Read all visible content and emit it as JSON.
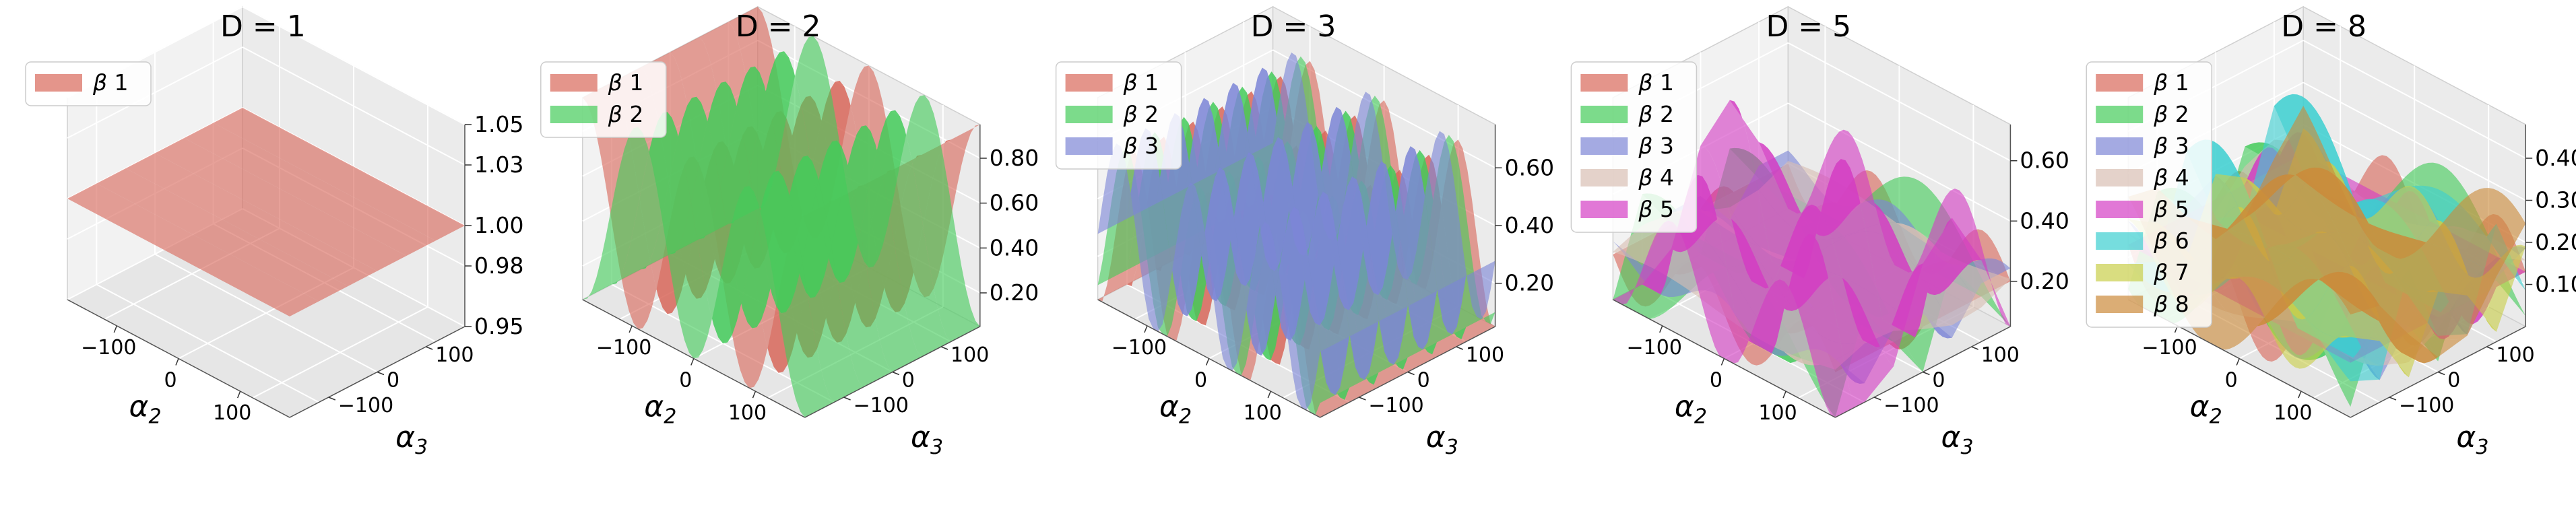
{
  "figure": {
    "description": "3D surface plots of beta weights versus alpha2 and alpha3 for increasing D",
    "colors": {
      "beta1": "#d9685a",
      "beta2": "#44cc5a",
      "beta3": "#7d86d6",
      "beta4": "#d8bfb3",
      "beta5": "#d43ec4",
      "beta6": "#3ccfd0",
      "beta7": "#c9cf4a",
      "beta8": "#cc8a3a"
    }
  },
  "chart_data": [
    {
      "type": "surface3d",
      "title": "D = 1",
      "xlabel": "α₂",
      "ylabel": "α₃",
      "xlabel_parts": [
        "α",
        "2"
      ],
      "ylabel_parts": [
        "α",
        "3"
      ],
      "x_ticks": [
        "−100",
        "0",
        "100"
      ],
      "y_ticks": [
        "−100",
        "0",
        "100"
      ],
      "z_ticks": [
        "0.95",
        "0.98",
        "1.00",
        "1.03",
        "1.05"
      ],
      "zlim": [
        0.95,
        1.05
      ],
      "x_range": [
        -180,
        180
      ],
      "y_range": [
        -180,
        180
      ],
      "legend_location": "upper-left",
      "series": [
        {
          "name": "β 1",
          "label_parts": [
            "β",
            " 1"
          ],
          "color_key": "beta1",
          "kind": "constant",
          "value": 1.0
        }
      ]
    },
    {
      "type": "surface3d",
      "title": "D = 2",
      "xlabel": "α₂",
      "ylabel": "α₃",
      "xlabel_parts": [
        "α",
        "2"
      ],
      "ylabel_parts": [
        "α",
        "3"
      ],
      "x_ticks": [
        "−100",
        "0",
        "100"
      ],
      "y_ticks": [
        "−100",
        "0",
        "100"
      ],
      "z_ticks": [
        "0.20",
        "0.40",
        "0.60",
        "0.80"
      ],
      "zlim": [
        0.05,
        0.95
      ],
      "x_range": [
        -180,
        180
      ],
      "y_range": [
        -180,
        180
      ],
      "legend_location": "upper-left",
      "series": [
        {
          "name": "β 1",
          "label_parts": [
            "β",
            " 1"
          ],
          "color_key": "beta1",
          "kind": "cosine_x",
          "mean": 0.5,
          "amplitude": 0.45,
          "period_deg": 180
        },
        {
          "name": "β 2",
          "label_parts": [
            "β",
            " 2"
          ],
          "color_key": "beta2",
          "kind": "cosine_x",
          "mean": 0.5,
          "amplitude": -0.45,
          "period_deg": 180
        }
      ]
    },
    {
      "type": "surface3d",
      "title": "D = 3",
      "xlabel": "α₂",
      "ylabel": "α₃",
      "xlabel_parts": [
        "α",
        "2"
      ],
      "ylabel_parts": [
        "α",
        "3"
      ],
      "x_ticks": [
        "−100",
        "0",
        "100"
      ],
      "y_ticks": [
        "−100",
        "0",
        "100"
      ],
      "z_ticks": [
        "0.20",
        "0.40",
        "0.60"
      ],
      "zlim": [
        0.05,
        0.75
      ],
      "x_range": [
        -180,
        180
      ],
      "y_range": [
        -180,
        180
      ],
      "legend_location": "upper-left",
      "series": [
        {
          "name": "β 1",
          "label_parts": [
            "β",
            " 1"
          ],
          "color_key": "beta1",
          "kind": "cosine_x",
          "mean": 0.33,
          "amplitude": 0.3,
          "period_deg": 120,
          "phase_deg": 0
        },
        {
          "name": "β 2",
          "label_parts": [
            "β",
            " 2"
          ],
          "color_key": "beta2",
          "kind": "cosine_x",
          "mean": 0.33,
          "amplitude": 0.3,
          "period_deg": 120,
          "phase_deg": 40
        },
        {
          "name": "β 3",
          "label_parts": [
            "β",
            " 3"
          ],
          "color_key": "beta3",
          "kind": "cosine_x",
          "mean": 0.33,
          "amplitude": 0.3,
          "period_deg": 120,
          "phase_deg": 80
        }
      ]
    },
    {
      "type": "surface3d",
      "title": "D = 5",
      "xlabel": "α₂",
      "ylabel": "α₃",
      "xlabel_parts": [
        "α",
        "2"
      ],
      "ylabel_parts": [
        "α",
        "3"
      ],
      "x_ticks": [
        "−100",
        "0",
        "100"
      ],
      "y_ticks": [
        "−100",
        "0",
        "100"
      ],
      "z_ticks": [
        "0.20",
        "0.40",
        "0.60"
      ],
      "zlim": [
        0.05,
        0.72
      ],
      "x_range": [
        -180,
        180
      ],
      "y_range": [
        -180,
        180
      ],
      "legend_location": "upper-left",
      "series": [
        {
          "name": "β 1",
          "label_parts": [
            "β",
            " 1"
          ],
          "color_key": "beta1",
          "kind": "wave2d",
          "mean": 0.2,
          "amplitude": 0.12,
          "fx": 2,
          "fy": 1,
          "phase_deg": 0
        },
        {
          "name": "β 2",
          "label_parts": [
            "β",
            " 2"
          ],
          "color_key": "beta2",
          "kind": "wave2d",
          "mean": 0.2,
          "amplitude": 0.2,
          "fx": 1,
          "fy": 2,
          "phase_deg": 60
        },
        {
          "name": "β 3",
          "label_parts": [
            "β",
            " 3"
          ],
          "color_key": "beta3",
          "kind": "wave2d",
          "mean": 0.2,
          "amplitude": 0.1,
          "fx": 2,
          "fy": 2,
          "phase_deg": 120
        },
        {
          "name": "β 4",
          "label_parts": [
            "β",
            " 4"
          ],
          "color_key": "beta4",
          "kind": "wave2d",
          "mean": 0.2,
          "amplitude": 0.14,
          "fx": 1,
          "fy": 1,
          "phase_deg": 200
        },
        {
          "name": "β 5",
          "label_parts": [
            "β",
            " 5"
          ],
          "color_key": "beta5",
          "kind": "wave2d",
          "mean": 0.22,
          "amplitude": 0.3,
          "fx": 2,
          "fy": 1,
          "phase_deg": 260
        }
      ]
    },
    {
      "type": "surface3d",
      "title": "D = 8",
      "xlabel": "α₂",
      "ylabel": "α₃",
      "xlabel_parts": [
        "α",
        "2"
      ],
      "ylabel_parts": [
        "α",
        "3"
      ],
      "x_ticks": [
        "−100",
        "0",
        "100"
      ],
      "y_ticks": [
        "−100",
        "0",
        "100"
      ],
      "z_ticks": [
        "0.10",
        "0.20",
        "0.30",
        "0.40"
      ],
      "zlim": [
        0.0,
        0.48
      ],
      "x_range": [
        -180,
        180
      ],
      "y_range": [
        -180,
        180
      ],
      "legend_location": "upper-left",
      "series": [
        {
          "name": "β 1",
          "label_parts": [
            "β",
            " 1"
          ],
          "color_key": "beta1",
          "kind": "wave2d",
          "mean": 0.13,
          "amplitude": 0.1,
          "fx": 2,
          "fy": 1,
          "phase_deg": 0
        },
        {
          "name": "β 2",
          "label_parts": [
            "β",
            " 2"
          ],
          "color_key": "beta2",
          "kind": "wave2d",
          "mean": 0.13,
          "amplitude": 0.16,
          "fx": 1,
          "fy": 2,
          "phase_deg": 45
        },
        {
          "name": "β 3",
          "label_parts": [
            "β",
            " 3"
          ],
          "color_key": "beta3",
          "kind": "wave2d",
          "mean": 0.13,
          "amplitude": 0.08,
          "fx": 2,
          "fy": 2,
          "phase_deg": 90
        },
        {
          "name": "β 4",
          "label_parts": [
            "β",
            " 4"
          ],
          "color_key": "beta4",
          "kind": "wave2d",
          "mean": 0.13,
          "amplitude": 0.1,
          "fx": 1,
          "fy": 1,
          "phase_deg": 135
        },
        {
          "name": "β 5",
          "label_parts": [
            "β",
            " 5"
          ],
          "color_key": "beta5",
          "kind": "wave2d",
          "mean": 0.13,
          "amplitude": 0.14,
          "fx": 2,
          "fy": 1,
          "phase_deg": 180
        },
        {
          "name": "β 6",
          "label_parts": [
            "β",
            " 6"
          ],
          "color_key": "beta6",
          "kind": "wave2d",
          "mean": 0.14,
          "amplitude": 0.2,
          "fx": 1,
          "fy": 2,
          "phase_deg": 225
        },
        {
          "name": "β 7",
          "label_parts": [
            "β",
            " 7"
          ],
          "color_key": "beta7",
          "kind": "wave2d",
          "mean": 0.12,
          "amplitude": 0.1,
          "fx": 2,
          "fy": 2,
          "phase_deg": 270
        },
        {
          "name": "β 8",
          "label_parts": [
            "β",
            " 8"
          ],
          "color_key": "beta8",
          "kind": "wave2d",
          "mean": 0.14,
          "amplitude": 0.16,
          "fx": 1,
          "fy": 1,
          "phase_deg": 315
        }
      ]
    }
  ]
}
